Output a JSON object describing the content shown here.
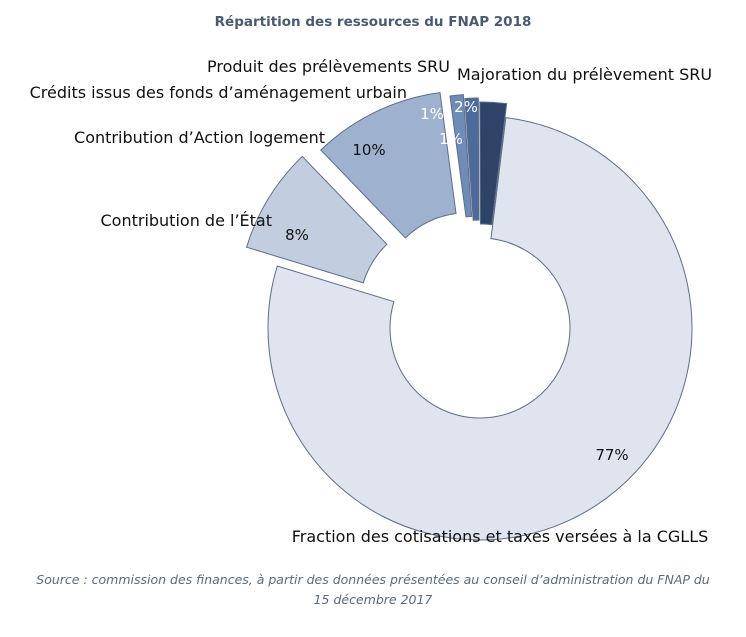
{
  "chart_data": {
    "type": "pie",
    "title": "Répartition des ressources du FNAP 2018",
    "slices": [
      {
        "label": "Fraction des cotisations et taxes versées à la CGLLS",
        "value": 77,
        "value_label": "77%",
        "color": "#dfe4ef"
      },
      {
        "label": "Contribution de l’État",
        "value": 8,
        "value_label": "8%",
        "color": "#c3cde0"
      },
      {
        "label": "Contribution d’Action logement",
        "value": 10,
        "value_label": "10%",
        "color": "#9eb1cf"
      },
      {
        "label": "Crédits issus des fonds d’aménagement urbain",
        "value": 1,
        "value_label": "1%",
        "color": "#6f8bb8"
      },
      {
        "label": "Produit des prélèvements SRU",
        "value": 1,
        "value_label": "1%",
        "color": "#4d6a9c"
      },
      {
        "label": "Majoration du prélèvement SRU",
        "value": 2,
        "value_label": "2%",
        "color": "#2d4468"
      }
    ],
    "legend": "none",
    "source": "Source : commission des finances, à partir des données présentées au conseil d’administration du FNAP du 15 décembre 2017"
  }
}
